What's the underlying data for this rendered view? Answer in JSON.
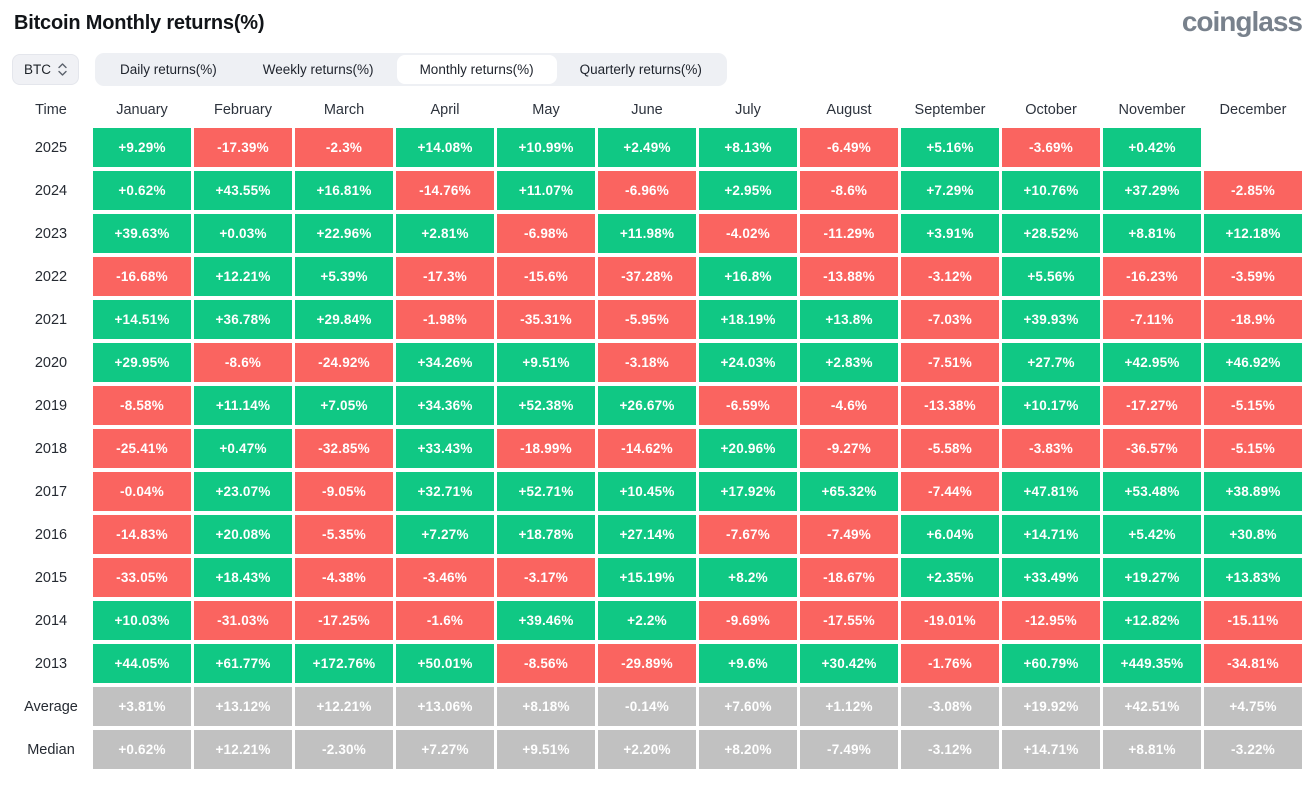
{
  "page": {
    "title": "Bitcoin Monthly returns(%)",
    "logo": "coinglass"
  },
  "controls": {
    "symbol_select": {
      "value": "BTC"
    },
    "tabs": [
      {
        "label": "Daily returns(%)",
        "active": false
      },
      {
        "label": "Weekly returns(%)",
        "active": false
      },
      {
        "label": "Monthly returns(%)",
        "active": true
      },
      {
        "label": "Quarterly returns(%)",
        "active": false
      }
    ]
  },
  "colors": {
    "positive": "#10c884",
    "negative": "#fa6460",
    "neutral": "#c1c1c1",
    "control_bg": "#eef0f4",
    "logo_gray": "#78818c"
  },
  "table": {
    "time_header": "Time",
    "months": [
      "January",
      "February",
      "March",
      "April",
      "May",
      "June",
      "July",
      "August",
      "September",
      "October",
      "November",
      "December"
    ],
    "rows": [
      {
        "label": "2025",
        "neutral": false,
        "values": [
          "+9.29%",
          "-17.39%",
          "-2.3%",
          "+14.08%",
          "+10.99%",
          "+2.49%",
          "+8.13%",
          "-6.49%",
          "+5.16%",
          "-3.69%",
          "+0.42%",
          ""
        ]
      },
      {
        "label": "2024",
        "neutral": false,
        "values": [
          "+0.62%",
          "+43.55%",
          "+16.81%",
          "-14.76%",
          "+11.07%",
          "-6.96%",
          "+2.95%",
          "-8.6%",
          "+7.29%",
          "+10.76%",
          "+37.29%",
          "-2.85%"
        ]
      },
      {
        "label": "2023",
        "neutral": false,
        "values": [
          "+39.63%",
          "+0.03%",
          "+22.96%",
          "+2.81%",
          "-6.98%",
          "+11.98%",
          "-4.02%",
          "-11.29%",
          "+3.91%",
          "+28.52%",
          "+8.81%",
          "+12.18%"
        ]
      },
      {
        "label": "2022",
        "neutral": false,
        "values": [
          "-16.68%",
          "+12.21%",
          "+5.39%",
          "-17.3%",
          "-15.6%",
          "-37.28%",
          "+16.8%",
          "-13.88%",
          "-3.12%",
          "+5.56%",
          "-16.23%",
          "-3.59%"
        ]
      },
      {
        "label": "2021",
        "neutral": false,
        "values": [
          "+14.51%",
          "+36.78%",
          "+29.84%",
          "-1.98%",
          "-35.31%",
          "-5.95%",
          "+18.19%",
          "+13.8%",
          "-7.03%",
          "+39.93%",
          "-7.11%",
          "-18.9%"
        ]
      },
      {
        "label": "2020",
        "neutral": false,
        "values": [
          "+29.95%",
          "-8.6%",
          "-24.92%",
          "+34.26%",
          "+9.51%",
          "-3.18%",
          "+24.03%",
          "+2.83%",
          "-7.51%",
          "+27.7%",
          "+42.95%",
          "+46.92%"
        ]
      },
      {
        "label": "2019",
        "neutral": false,
        "values": [
          "-8.58%",
          "+11.14%",
          "+7.05%",
          "+34.36%",
          "+52.38%",
          "+26.67%",
          "-6.59%",
          "-4.6%",
          "-13.38%",
          "+10.17%",
          "-17.27%",
          "-5.15%"
        ]
      },
      {
        "label": "2018",
        "neutral": false,
        "values": [
          "-25.41%",
          "+0.47%",
          "-32.85%",
          "+33.43%",
          "-18.99%",
          "-14.62%",
          "+20.96%",
          "-9.27%",
          "-5.58%",
          "-3.83%",
          "-36.57%",
          "-5.15%"
        ]
      },
      {
        "label": "2017",
        "neutral": false,
        "values": [
          "-0.04%",
          "+23.07%",
          "-9.05%",
          "+32.71%",
          "+52.71%",
          "+10.45%",
          "+17.92%",
          "+65.32%",
          "-7.44%",
          "+47.81%",
          "+53.48%",
          "+38.89%"
        ]
      },
      {
        "label": "2016",
        "neutral": false,
        "values": [
          "-14.83%",
          "+20.08%",
          "-5.35%",
          "+7.27%",
          "+18.78%",
          "+27.14%",
          "-7.67%",
          "-7.49%",
          "+6.04%",
          "+14.71%",
          "+5.42%",
          "+30.8%"
        ]
      },
      {
        "label": "2015",
        "neutral": false,
        "values": [
          "-33.05%",
          "+18.43%",
          "-4.38%",
          "-3.46%",
          "-3.17%",
          "+15.19%",
          "+8.2%",
          "-18.67%",
          "+2.35%",
          "+33.49%",
          "+19.27%",
          "+13.83%"
        ]
      },
      {
        "label": "2014",
        "neutral": false,
        "values": [
          "+10.03%",
          "-31.03%",
          "-17.25%",
          "-1.6%",
          "+39.46%",
          "+2.2%",
          "-9.69%",
          "-17.55%",
          "-19.01%",
          "-12.95%",
          "+12.82%",
          "-15.11%"
        ]
      },
      {
        "label": "2013",
        "neutral": false,
        "values": [
          "+44.05%",
          "+61.77%",
          "+172.76%",
          "+50.01%",
          "-8.56%",
          "-29.89%",
          "+9.6%",
          "+30.42%",
          "-1.76%",
          "+60.79%",
          "+449.35%",
          "-34.81%"
        ]
      },
      {
        "label": "Average",
        "neutral": true,
        "values": [
          "+3.81%",
          "+13.12%",
          "+12.21%",
          "+13.06%",
          "+8.18%",
          "-0.14%",
          "+7.60%",
          "+1.12%",
          "-3.08%",
          "+19.92%",
          "+42.51%",
          "+4.75%"
        ]
      },
      {
        "label": "Median",
        "neutral": true,
        "values": [
          "+0.62%",
          "+12.21%",
          "-2.30%",
          "+7.27%",
          "+9.51%",
          "+2.20%",
          "+8.20%",
          "-7.49%",
          "-3.12%",
          "+14.71%",
          "+8.81%",
          "-3.22%"
        ]
      }
    ]
  },
  "chart_data": {
    "type": "heatmap",
    "title": "Bitcoin Monthly returns(%)",
    "unit": "%",
    "x_labels": [
      "January",
      "February",
      "March",
      "April",
      "May",
      "June",
      "July",
      "August",
      "September",
      "October",
      "November",
      "December"
    ],
    "y_labels": [
      "2025",
      "2024",
      "2023",
      "2022",
      "2021",
      "2020",
      "2019",
      "2018",
      "2017",
      "2016",
      "2015",
      "2014",
      "2013",
      "Average",
      "Median"
    ],
    "values": [
      [
        9.29,
        -17.39,
        -2.3,
        14.08,
        10.99,
        2.49,
        8.13,
        -6.49,
        5.16,
        -3.69,
        0.42,
        null
      ],
      [
        0.62,
        43.55,
        16.81,
        -14.76,
        11.07,
        -6.96,
        2.95,
        -8.6,
        7.29,
        10.76,
        37.29,
        -2.85
      ],
      [
        39.63,
        0.03,
        22.96,
        2.81,
        -6.98,
        11.98,
        -4.02,
        -11.29,
        3.91,
        28.52,
        8.81,
        12.18
      ],
      [
        -16.68,
        12.21,
        5.39,
        -17.3,
        -15.6,
        -37.28,
        16.8,
        -13.88,
        -3.12,
        5.56,
        -16.23,
        -3.59
      ],
      [
        14.51,
        36.78,
        29.84,
        -1.98,
        -35.31,
        -5.95,
        18.19,
        13.8,
        -7.03,
        39.93,
        -7.11,
        -18.9
      ],
      [
        29.95,
        -8.6,
        -24.92,
        34.26,
        9.51,
        -3.18,
        24.03,
        2.83,
        -7.51,
        27.7,
        42.95,
        46.92
      ],
      [
        -8.58,
        11.14,
        7.05,
        34.36,
        52.38,
        26.67,
        -6.59,
        -4.6,
        -13.38,
        10.17,
        -17.27,
        -5.15
      ],
      [
        -25.41,
        0.47,
        -32.85,
        33.43,
        -18.99,
        -14.62,
        20.96,
        -9.27,
        -5.58,
        -3.83,
        -36.57,
        -5.15
      ],
      [
        -0.04,
        23.07,
        -9.05,
        32.71,
        52.71,
        10.45,
        17.92,
        65.32,
        -7.44,
        47.81,
        53.48,
        38.89
      ],
      [
        -14.83,
        20.08,
        -5.35,
        7.27,
        18.78,
        27.14,
        -7.67,
        -7.49,
        6.04,
        14.71,
        5.42,
        30.8
      ],
      [
        -33.05,
        18.43,
        -4.38,
        -3.46,
        -3.17,
        15.19,
        8.2,
        -18.67,
        2.35,
        33.49,
        19.27,
        13.83
      ],
      [
        10.03,
        -31.03,
        -17.25,
        -1.6,
        39.46,
        2.2,
        -9.69,
        -17.55,
        -19.01,
        -12.95,
        12.82,
        -15.11
      ],
      [
        44.05,
        61.77,
        172.76,
        50.01,
        -8.56,
        -29.89,
        9.6,
        30.42,
        -1.76,
        60.79,
        449.35,
        -34.81
      ],
      [
        3.81,
        13.12,
        12.21,
        13.06,
        8.18,
        -0.14,
        7.6,
        1.12,
        -3.08,
        19.92,
        42.51,
        4.75
      ],
      [
        0.62,
        12.21,
        -2.3,
        7.27,
        9.51,
        2.2,
        8.2,
        -7.49,
        -3.12,
        14.71,
        8.81,
        -3.22
      ]
    ],
    "legend": "none",
    "color_rule": "positive=green #10c884, negative=red #fa6460, Average/Median rows=gray #c1c1c1"
  }
}
